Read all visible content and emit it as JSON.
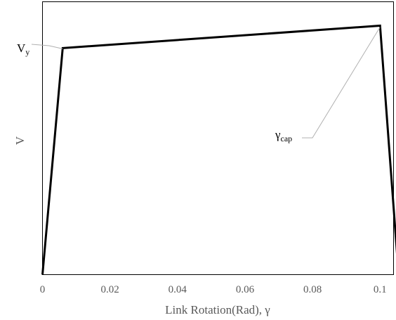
{
  "chart_data": {
    "type": "line",
    "xlabel": "Link Rotation(Rad), γ",
    "ylabel": "V",
    "xlim": [
      0,
      0.104
    ],
    "ylim": [
      0,
      1.0
    ],
    "x_ticks": [
      0,
      0.02,
      0.04,
      0.06,
      0.08,
      0.1
    ],
    "x_tick_labels": [
      "0",
      "0.02",
      "0.04",
      "0.06",
      "0.08",
      "0.1"
    ],
    "y_tick_labels": [],
    "grid": false,
    "legend": "none",
    "series": [
      {
        "color": "#000000",
        "points": [
          {
            "x": 0,
            "y": 0
          },
          {
            "x": 0.006,
            "y": 0.91
          },
          {
            "x": 0.1,
            "y": 1.0
          },
          {
            "x": 0.1055,
            "y": 0
          }
        ]
      }
    ],
    "annotations": [
      {
        "id": "vy",
        "main": "V",
        "sub": "y",
        "point_index": 1
      },
      {
        "id": "gamma-cap",
        "main": "γ",
        "sub": "cap",
        "point_index": 2
      }
    ]
  }
}
